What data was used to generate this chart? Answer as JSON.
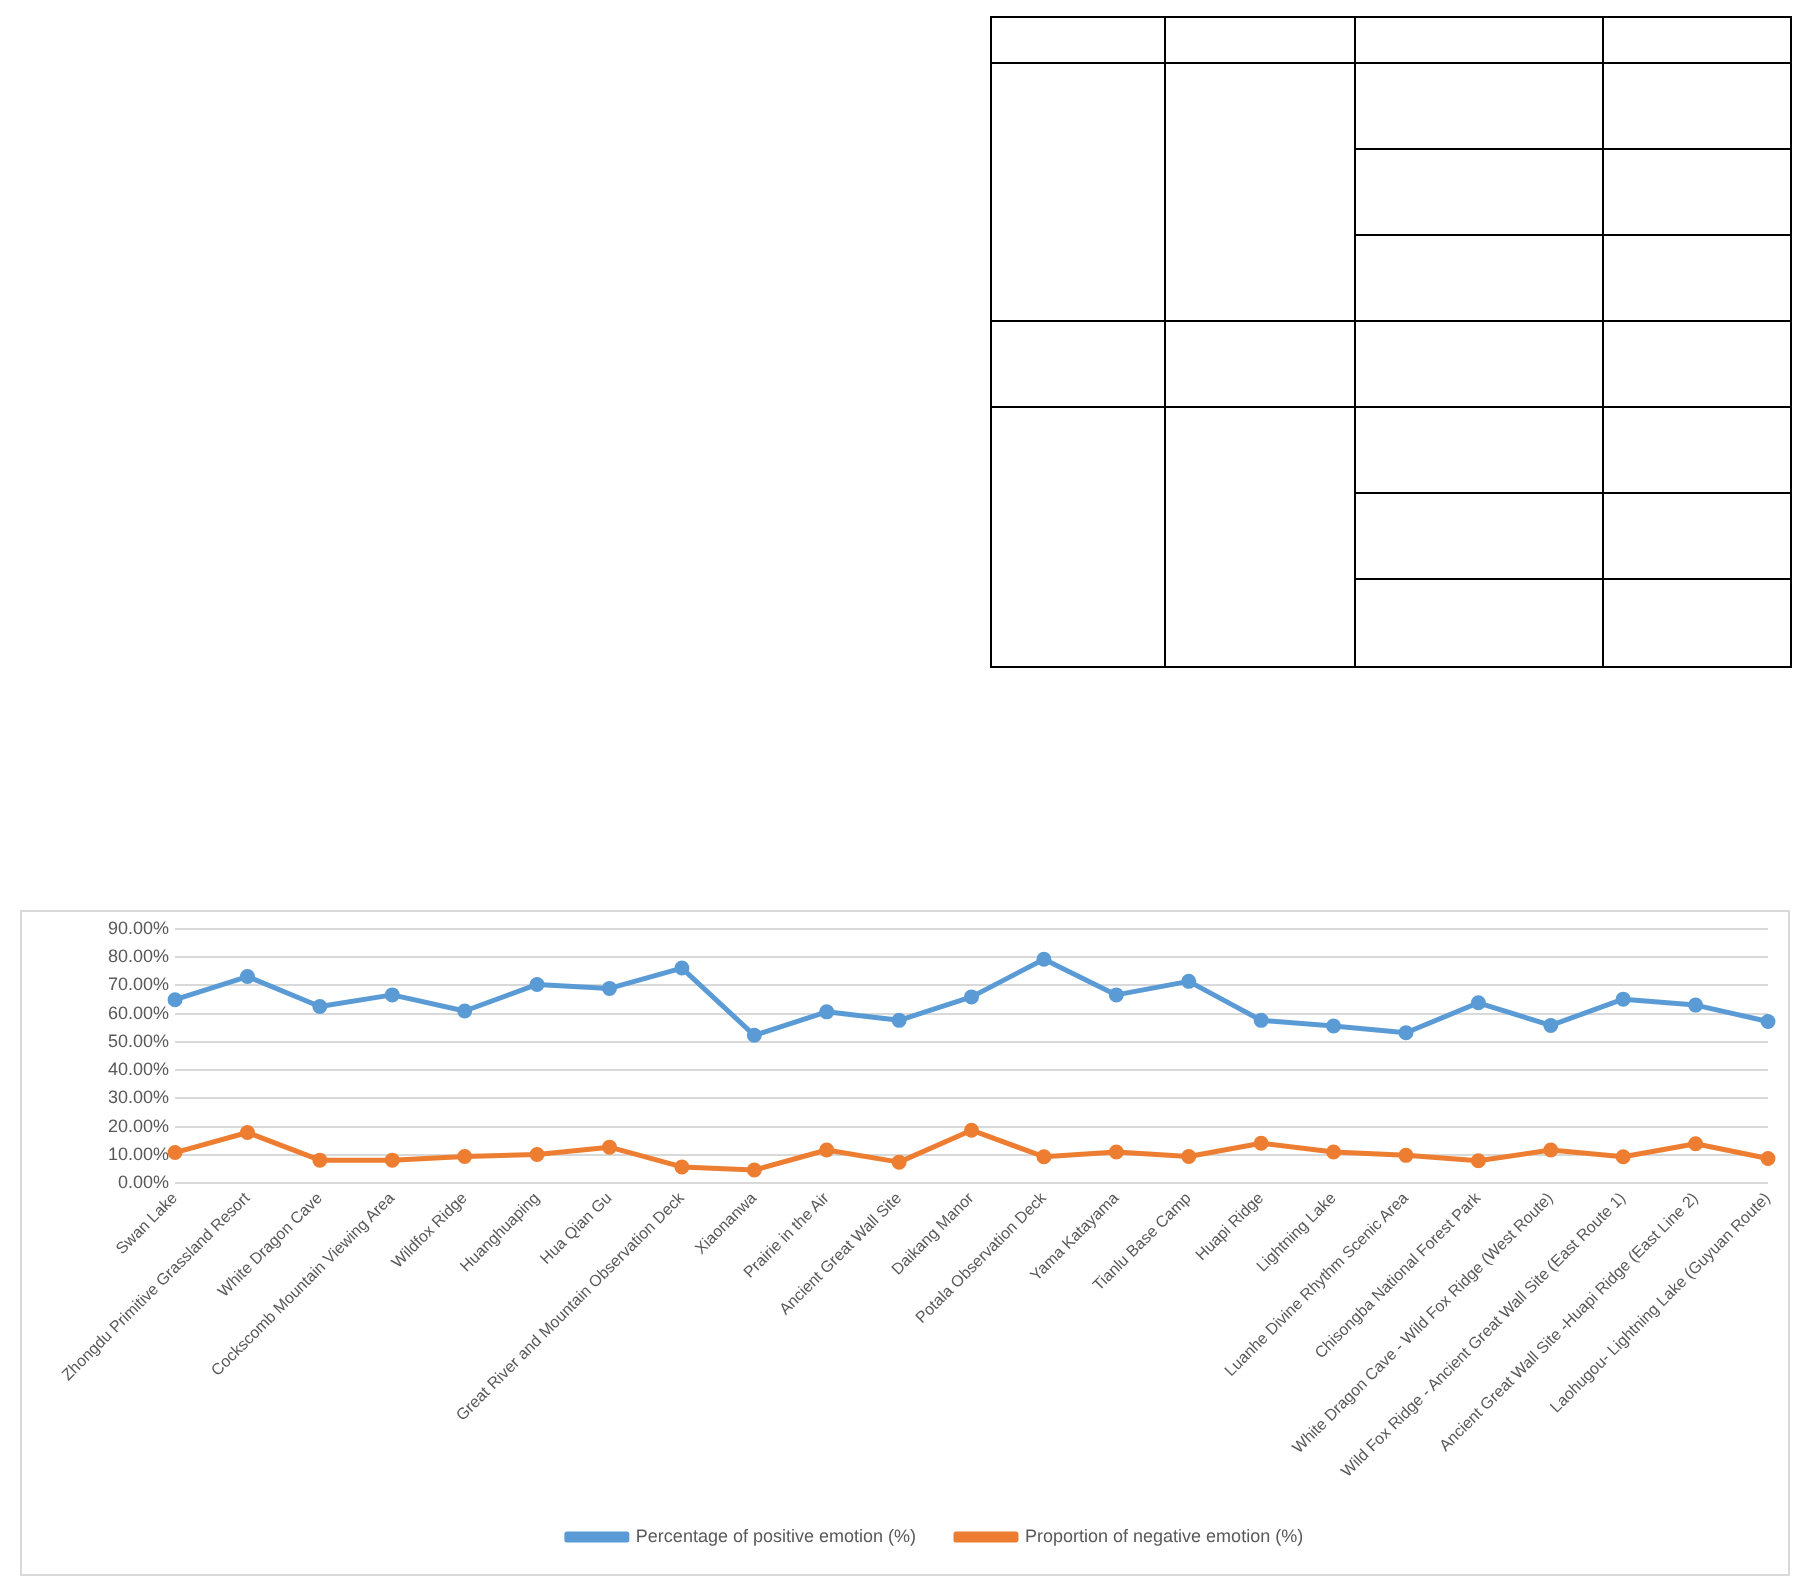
{
  "chart_data": {
    "type": "line",
    "categories": [
      "Swan Lake",
      "Zhongdu Primitive Grassland Resort",
      "White Dragon Cave",
      "Cockscomb Mountain Viewing Area",
      "Wildfox Ridge",
      "Huanghuaping",
      "Hua Qian Gu",
      "Great River and Mountain Observation Deck",
      "Xiaonanwa",
      "Prairie in the Air",
      "Ancient Great Wall Site",
      "Daikang Manor",
      "Potala Observation Deck",
      "Yama Katayama",
      "Tianlu Base Camp",
      "Huapi Ridge",
      "Lightning Lake",
      "Luanhe Divine Rhythm Scenic Area",
      "Chisongba National Forest Park",
      "White Dragon Cave - Wild Fox Ridge (West Route)",
      "Wild Fox Ridge - Ancient Great Wall Site (East Route 1)",
      "Ancient Great Wall Site -Huapi Ridge (East Line 2)",
      "Laohugou- Lightning Lake (Guyuan Route)"
    ],
    "series": [
      {
        "name": "Percentage of positive emotion (%)",
        "color": "#5b9bd5",
        "values": [
          64.9,
          73.1,
          62.5,
          66.6,
          60.9,
          70.3,
          68.9,
          76.1,
          52.3,
          60.6,
          57.6,
          65.9,
          79.2,
          66.6,
          71.4,
          57.6,
          55.6,
          53.2,
          63.8,
          55.8,
          65.1,
          63.0,
          57.2
        ]
      },
      {
        "name": "Proportion of negative emotion (%)",
        "color": "#ed7d31",
        "values": [
          10.8,
          17.9,
          8.1,
          8.1,
          9.4,
          10.1,
          12.7,
          5.7,
          4.6,
          11.7,
          7.4,
          18.7,
          9.3,
          11.0,
          9.4,
          14.1,
          11.0,
          9.8,
          7.9,
          11.7,
          9.3,
          13.9,
          8.7
        ]
      }
    ],
    "ylim": [
      0,
      90
    ],
    "yticks": [
      {
        "value": 0,
        "label": "0.00%"
      },
      {
        "value": 10,
        "label": "10.00%"
      },
      {
        "value": 20,
        "label": "20.00%"
      },
      {
        "value": 30,
        "label": "30.00%"
      },
      {
        "value": 40,
        "label": "40.00%"
      },
      {
        "value": 50,
        "label": "50.00%"
      },
      {
        "value": 60,
        "label": "60.00%"
      },
      {
        "value": 70,
        "label": "70.00%"
      },
      {
        "value": 80,
        "label": "80.00%"
      },
      {
        "value": 90,
        "label": "90.00%"
      }
    ],
    "grid": "y",
    "legend": "bottom",
    "marker": "circle",
    "line_style": "solid"
  }
}
